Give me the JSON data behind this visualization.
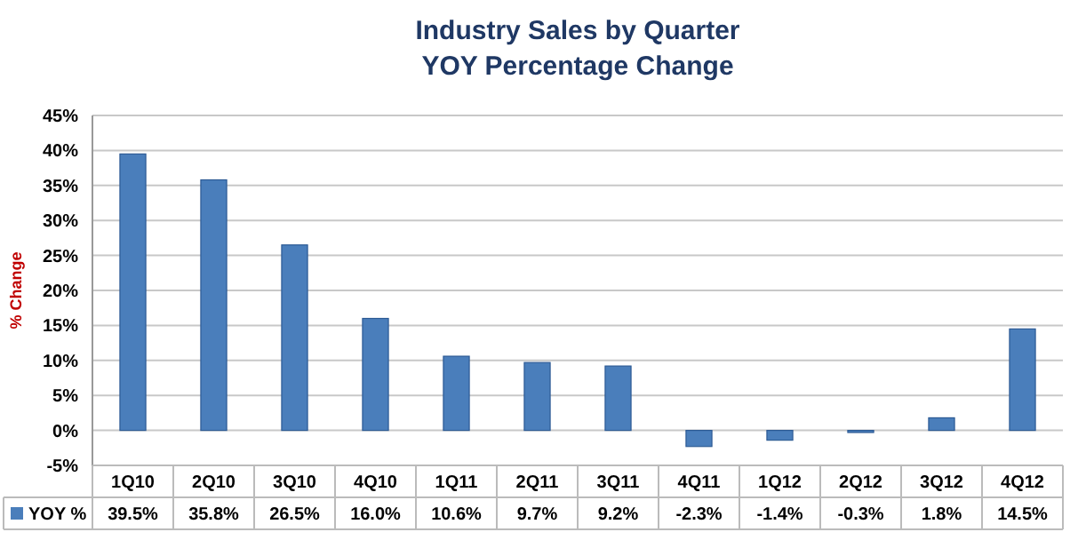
{
  "chart_data": {
    "type": "bar",
    "title": "Industry Sales by Quarter\nYOY Percentage Change",
    "ylabel": "% Change",
    "categories": [
      "1Q10",
      "2Q10",
      "3Q10",
      "4Q10",
      "1Q11",
      "2Q11",
      "3Q11",
      "4Q11",
      "1Q12",
      "2Q12",
      "3Q12",
      "4Q12"
    ],
    "series": [
      {
        "name": "YOY %",
        "color": "#4a7ebb",
        "values": [
          39.5,
          35.8,
          26.5,
          16.0,
          10.6,
          9.7,
          9.2,
          -2.3,
          -1.4,
          -0.3,
          1.8,
          14.5
        ],
        "value_labels": [
          "39.5%",
          "35.8%",
          "26.5%",
          "16.0%",
          "10.6%",
          "9.7%",
          "9.2%",
          "-2.3%",
          "-1.4%",
          "-0.3%",
          "1.8%",
          "14.5%"
        ]
      }
    ],
    "ylim": [
      -5,
      45
    ],
    "yticks": [
      {
        "value": -5,
        "label": "-5%"
      },
      {
        "value": 0,
        "label": "0%"
      },
      {
        "value": 5,
        "label": "5%"
      },
      {
        "value": 10,
        "label": "10%"
      },
      {
        "value": 15,
        "label": "15%"
      },
      {
        "value": 20,
        "label": "20%"
      },
      {
        "value": 25,
        "label": "25%"
      },
      {
        "value": 30,
        "label": "30%"
      },
      {
        "value": 35,
        "label": "35%"
      },
      {
        "value": 40,
        "label": "40%"
      },
      {
        "value": 45,
        "label": "45%"
      }
    ],
    "grid": true,
    "legend": "bottom"
  }
}
